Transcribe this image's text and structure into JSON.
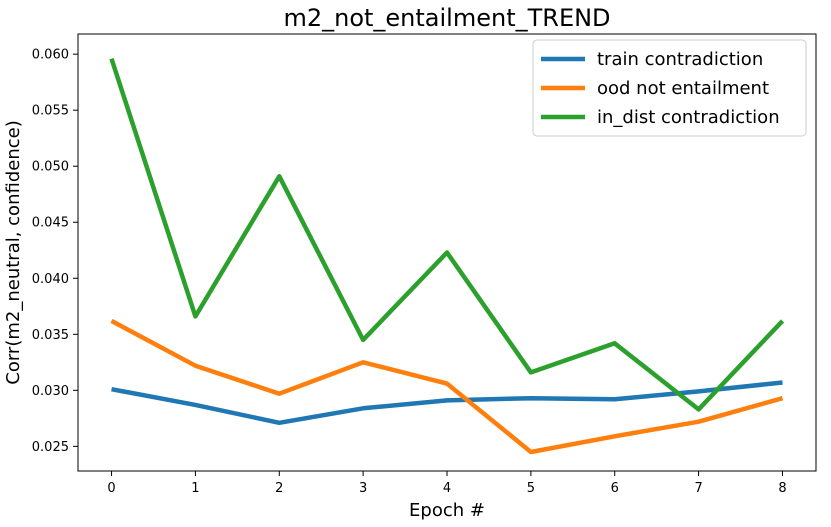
{
  "chart_data": {
    "type": "line",
    "title": "m2_not_entailment_TREND",
    "xlabel": "Epoch #",
    "ylabel": "Corr(m2_neutral, confidence)",
    "x": [
      0,
      1,
      2,
      3,
      4,
      5,
      6,
      7,
      8
    ],
    "xticks": [
      "0",
      "1",
      "2",
      "3",
      "4",
      "5",
      "6",
      "7",
      "8"
    ],
    "yticks": [
      "0.025",
      "0.030",
      "0.035",
      "0.040",
      "0.045",
      "0.050",
      "0.055",
      "0.060"
    ],
    "ytick_values": [
      0.025,
      0.03,
      0.035,
      0.04,
      0.045,
      0.05,
      0.055,
      0.06
    ],
    "xlim": [
      -0.4,
      8.4
    ],
    "ylim": [
      0.0228,
      0.0618
    ],
    "grid": false,
    "legend_position": "top-right",
    "series": [
      {
        "name": "train contradiction",
        "color": "#1f77b4",
        "values": [
          0.0301,
          0.0287,
          0.0271,
          0.0284,
          0.0291,
          0.0293,
          0.0292,
          0.0299,
          0.0307
        ]
      },
      {
        "name": "ood not entailment",
        "color": "#ff7f0e",
        "values": [
          0.0362,
          0.0322,
          0.0297,
          0.0325,
          0.0306,
          0.0245,
          0.0259,
          0.0272,
          0.0293
        ]
      },
      {
        "name": "in_dist contradiction",
        "color": "#2ca02c",
        "values": [
          0.0596,
          0.0366,
          0.0491,
          0.0345,
          0.0423,
          0.0316,
          0.0342,
          0.0283,
          0.0362
        ]
      }
    ]
  }
}
